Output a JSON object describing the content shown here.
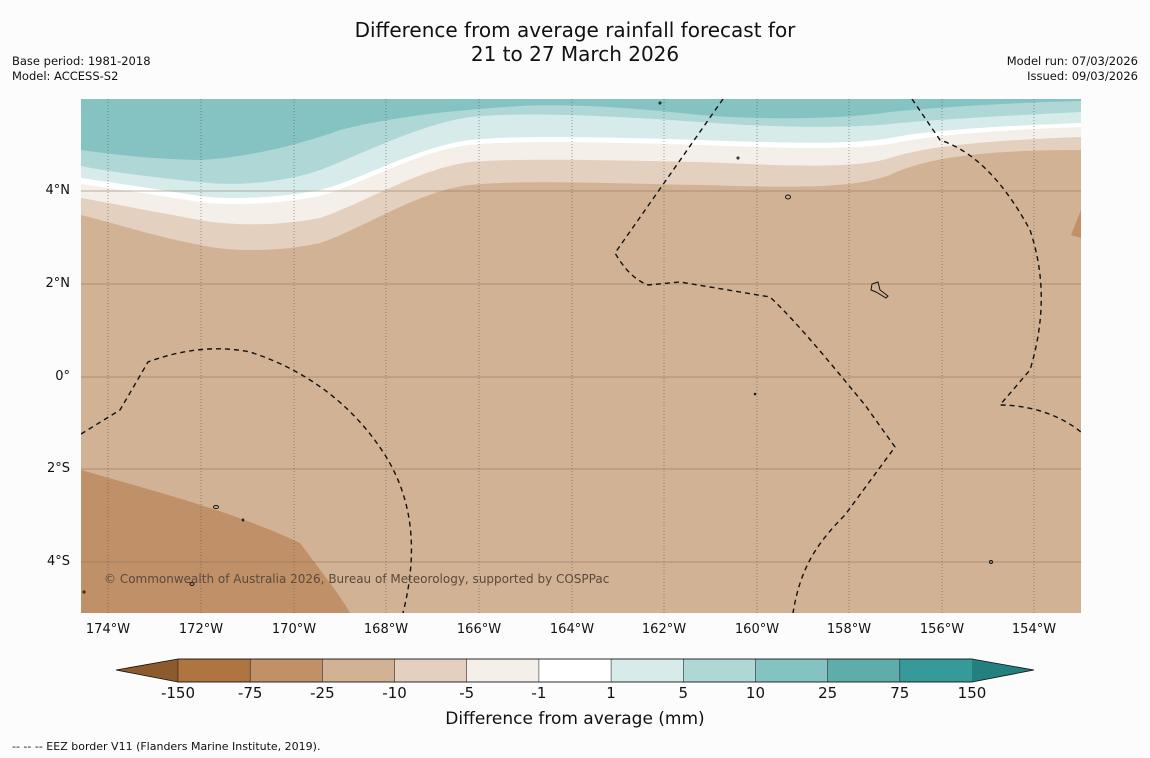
{
  "title": {
    "line1": "Difference from average rainfall forecast for",
    "line2": "21 to 27 March 2026"
  },
  "meta_left": {
    "base_period": "Base period: 1981-2018",
    "model": "Model: ACCESS-S2"
  },
  "meta_right": {
    "model_run": "Model run: 07/03/2026",
    "issued": "Issued: 09/03/2026"
  },
  "latitude_labels": [
    "4°N",
    "2°N",
    "0°",
    "2°S",
    "4°S"
  ],
  "longitude_labels": [
    "174°W",
    "172°W",
    "170°W",
    "168°W",
    "166°W",
    "164°W",
    "162°W",
    "160°W",
    "158°W",
    "156°W",
    "154°W"
  ],
  "copyright": "© Commonwealth of Australia 2026, Bureau of Meteorology, supported by COSPPac",
  "colorbar": {
    "title": "Difference from average (mm)",
    "ticks": [
      "-150",
      "-75",
      "-25",
      "-10",
      "-5",
      "-1",
      "1",
      "5",
      "10",
      "25",
      "75",
      "150"
    ],
    "colors": {
      "below_min": "#8c5a2d",
      "bins": [
        "#ae7540",
        "#c09068",
        "#d2b294",
        "#e4d0be",
        "#f4efe8",
        "#ffffff",
        "#d6ebea",
        "#aed7d6",
        "#84c3c1",
        "#5eadab",
        "#36999a"
      ],
      "above_max": "#22807f"
    }
  },
  "footnote": "--  --  -- EEZ border V11 (Flanders Marine Institute, 2019)."
}
